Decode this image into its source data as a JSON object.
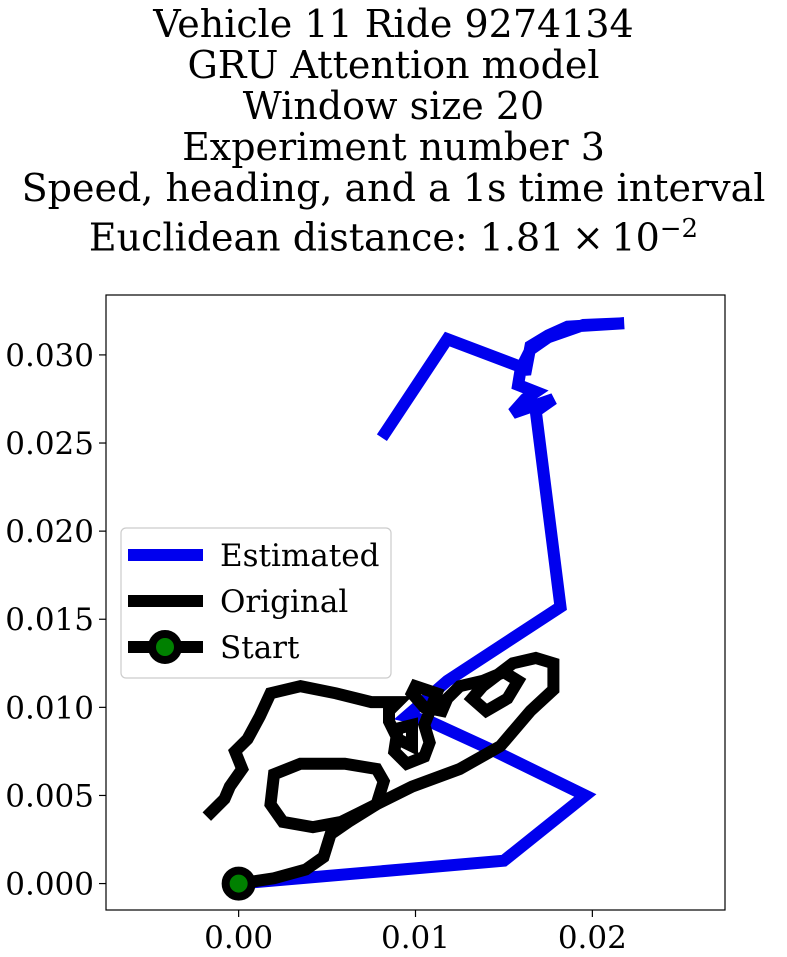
{
  "chart_data": {
    "type": "line",
    "title_lines": [
      "Vehicle 11 Ride 9274134",
      "GRU Attention model",
      "Window size 20",
      "Experiment number 3",
      "Speed, heading, and a 1s time interval"
    ],
    "title_metric": {
      "label": "Euclidean distance: 1.81",
      "times": "×",
      "base": "10",
      "exponent": "−2"
    },
    "xlabel": "",
    "ylabel": "",
    "xlim": [
      -0.0075,
      0.0275
    ],
    "ylim": [
      -0.0015,
      0.0334
    ],
    "x_ticks": [
      0.0,
      0.01,
      0.02
    ],
    "x_tick_labels": [
      "0.00",
      "0.01",
      "0.02"
    ],
    "y_ticks": [
      0.0,
      0.005,
      0.01,
      0.015,
      0.02,
      0.025,
      0.03
    ],
    "y_tick_labels": [
      "0.000",
      "0.005",
      "0.010",
      "0.015",
      "0.020",
      "0.025",
      "0.030"
    ],
    "grid": false,
    "legend": {
      "placement": "center-left",
      "entries": [
        {
          "label": "Estimated",
          "color": "#0000ee",
          "marker": false
        },
        {
          "label": "Original",
          "color": "#000000",
          "marker": false
        },
        {
          "label": "Start",
          "color": "#000000",
          "marker": true,
          "marker_color": "#008000"
        }
      ]
    },
    "series": [
      {
        "name": "Estimated",
        "color": "#0000ee",
        "points": [
          [
            0.0,
            0.0
          ],
          [
            0.015,
            0.0013
          ],
          [
            0.0196,
            0.005
          ],
          [
            0.0145,
            0.0075
          ],
          [
            0.0108,
            0.0092
          ],
          [
            0.0095,
            0.0095
          ],
          [
            0.0118,
            0.0115
          ],
          [
            0.0182,
            0.0157
          ],
          [
            0.0168,
            0.0268
          ],
          [
            0.0178,
            0.0275
          ],
          [
            0.0155,
            0.0267
          ],
          [
            0.0162,
            0.0275
          ],
          [
            0.0168,
            0.0279
          ],
          [
            0.0158,
            0.0283
          ],
          [
            0.016,
            0.0295
          ],
          [
            0.0162,
            0.0289
          ],
          [
            0.0165,
            0.0305
          ],
          [
            0.0175,
            0.0311
          ],
          [
            0.0186,
            0.0316
          ],
          [
            0.0218,
            0.0318
          ],
          [
            0.0195,
            0.0317
          ],
          [
            0.0175,
            0.031
          ],
          [
            0.0165,
            0.0303
          ],
          [
            0.016,
            0.0293
          ],
          [
            0.0118,
            0.0309
          ],
          [
            0.0081,
            0.0253
          ]
        ]
      },
      {
        "name": "Original",
        "color": "#000000",
        "points": [
          [
            0.0,
            0.0
          ],
          [
            0.002,
            0.0003
          ],
          [
            0.0038,
            0.0008
          ],
          [
            0.0048,
            0.0015
          ],
          [
            0.0052,
            0.0028
          ],
          [
            0.0062,
            0.0035
          ],
          [
            0.0078,
            0.0045
          ],
          [
            0.0098,
            0.0055
          ],
          [
            0.0125,
            0.0065
          ],
          [
            0.0148,
            0.0078
          ],
          [
            0.0165,
            0.0098
          ],
          [
            0.0178,
            0.011
          ],
          [
            0.0178,
            0.0125
          ],
          [
            0.0168,
            0.0128
          ],
          [
            0.0155,
            0.0125
          ],
          [
            0.0138,
            0.0112
          ],
          [
            0.0132,
            0.0105
          ],
          [
            0.014,
            0.0098
          ],
          [
            0.0152,
            0.0105
          ],
          [
            0.0158,
            0.0115
          ],
          [
            0.015,
            0.012
          ],
          [
            0.0138,
            0.0115
          ],
          [
            0.0125,
            0.0112
          ],
          [
            0.0118,
            0.0105
          ],
          [
            0.0115,
            0.0098
          ],
          [
            0.0105,
            0.01
          ],
          [
            0.0098,
            0.0108
          ],
          [
            0.01,
            0.0112
          ],
          [
            0.0112,
            0.0108
          ],
          [
            0.0105,
            0.009
          ],
          [
            0.0108,
            0.008
          ],
          [
            0.0105,
            0.0072
          ],
          [
            0.0095,
            0.0068
          ],
          [
            0.0088,
            0.0075
          ],
          [
            0.009,
            0.0088
          ],
          [
            0.0098,
            0.009
          ],
          [
            0.0098,
            0.0078
          ],
          [
            0.009,
            0.0082
          ],
          [
            0.0085,
            0.0092
          ],
          [
            0.0085,
            0.0098
          ],
          [
            0.009,
            0.0103
          ],
          [
            0.0075,
            0.0103
          ],
          [
            0.0055,
            0.0108
          ],
          [
            0.0035,
            0.0112
          ],
          [
            0.0018,
            0.0108
          ],
          [
            0.0012,
            0.0095
          ],
          [
            0.0005,
            0.0082
          ],
          [
            -0.0002,
            0.0075
          ],
          [
            0.0002,
            0.0065
          ],
          [
            -0.0005,
            0.0055
          ],
          [
            -0.0008,
            0.0048
          ],
          [
            -0.0018,
            0.0038
          ]
        ]
      },
      {
        "name": "Original",
        "color": "#000000",
        "points": [
          [
            0.0078,
            0.0045
          ],
          [
            0.0082,
            0.0058
          ],
          [
            0.0078,
            0.0065
          ],
          [
            0.006,
            0.0068
          ],
          [
            0.0035,
            0.0068
          ],
          [
            0.002,
            0.0062
          ],
          [
            0.0018,
            0.0045
          ],
          [
            0.0025,
            0.0035
          ],
          [
            0.0042,
            0.0032
          ],
          [
            0.0058,
            0.0035
          ],
          [
            0.0068,
            0.004
          ],
          [
            0.0078,
            0.0045
          ]
        ]
      }
    ],
    "start_point": {
      "x": 0.0,
      "y": 0.0,
      "label": "Start",
      "edge_color": "#000000",
      "fill_color": "#008000"
    }
  }
}
